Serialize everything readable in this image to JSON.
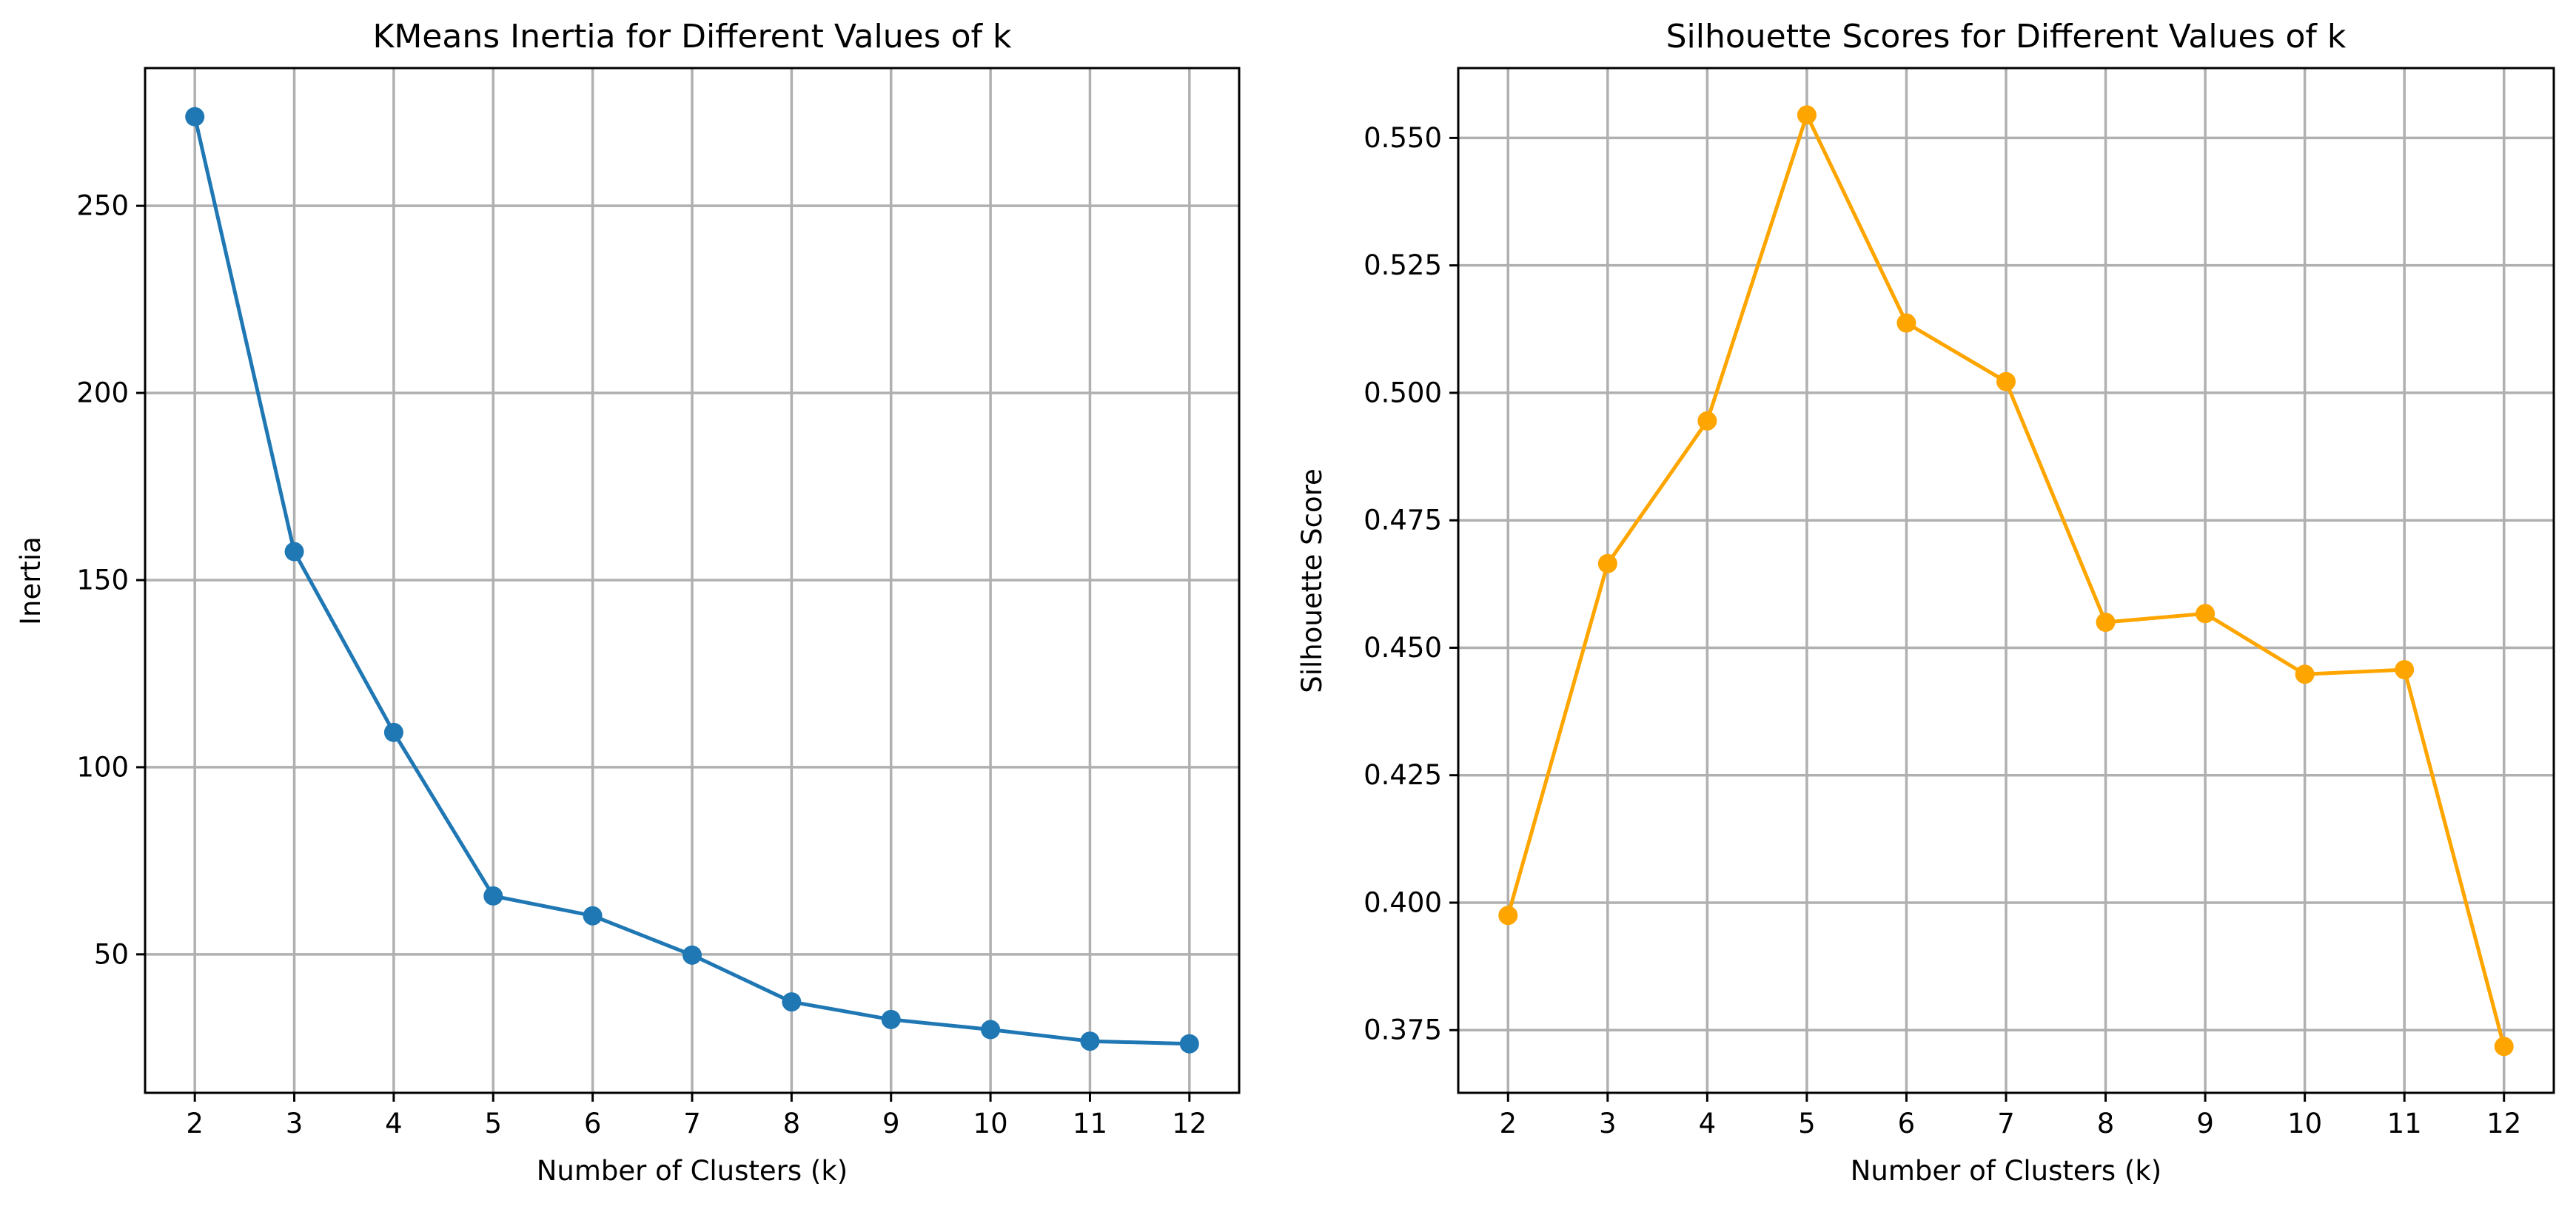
{
  "chart_data": [
    {
      "type": "line",
      "title": "KMeans Inertia for Different Values of k",
      "xlabel": "Number of Clusters (k)",
      "ylabel": "Inertia",
      "x": [
        2,
        3,
        4,
        5,
        6,
        7,
        8,
        9,
        10,
        11,
        12
      ],
      "series": [
        {
          "values": [
            273.8,
            157.6,
            109.3,
            65.6,
            60.3,
            49.8,
            37.3,
            32.6,
            29.9,
            26.8,
            26.1
          ],
          "color": "#1f77b4",
          "marker": "circle"
        }
      ],
      "xlim": [
        1.5,
        12.5
      ],
      "ylim": [
        13.0,
        286.8
      ],
      "xticks": [
        2,
        3,
        4,
        5,
        6,
        7,
        8,
        9,
        10,
        11,
        12
      ],
      "yticks": [
        50,
        100,
        150,
        200,
        250
      ],
      "ytick_labels": [
        "50",
        "100",
        "150",
        "200",
        "250"
      ],
      "grid": true
    },
    {
      "type": "line",
      "title": "Silhouette Scores for Different Values of k",
      "xlabel": "Number of Clusters (k)",
      "ylabel": "Silhouette Score",
      "x": [
        2,
        3,
        4,
        5,
        6,
        7,
        8,
        9,
        10,
        11,
        12
      ],
      "series": [
        {
          "values": [
            0.3975,
            0.4665,
            0.4945,
            0.5545,
            0.5137,
            0.5022,
            0.455,
            0.4567,
            0.4448,
            0.4457,
            0.3718
          ],
          "color": "#ffa500",
          "marker": "circle"
        }
      ],
      "xlim": [
        1.5,
        12.5
      ],
      "ylim": [
        0.3627,
        0.5637
      ],
      "xticks": [
        2,
        3,
        4,
        5,
        6,
        7,
        8,
        9,
        10,
        11,
        12
      ],
      "yticks": [
        0.375,
        0.4,
        0.425,
        0.45,
        0.475,
        0.5,
        0.525,
        0.55
      ],
      "ytick_labels": [
        "0.375",
        "0.400",
        "0.425",
        "0.450",
        "0.475",
        "0.500",
        "0.525",
        "0.550"
      ],
      "grid": true
    }
  ]
}
